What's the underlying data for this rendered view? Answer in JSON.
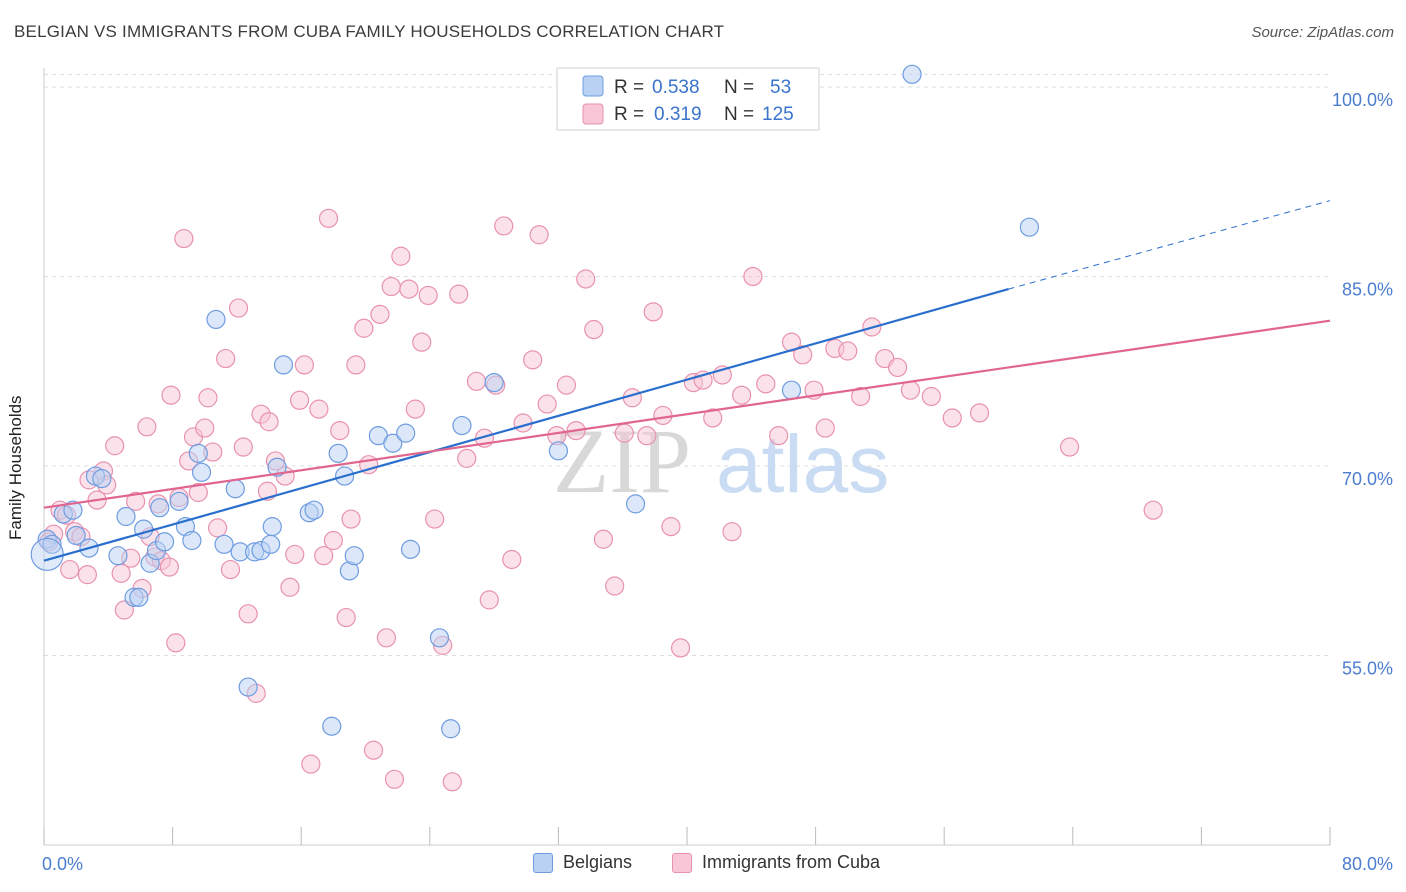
{
  "title": "BELGIAN VS IMMIGRANTS FROM CUBA FAMILY HOUSEHOLDS CORRELATION CHART",
  "source": "Source: ZipAtlas.com",
  "watermark": {
    "zip": "ZIP",
    "atlas": "atlas"
  },
  "legend_top": [
    {
      "r_label": "R =",
      "r_value": "0.538",
      "n_label": "N =",
      "n_value": "53"
    },
    {
      "r_label": "R =",
      "r_value": "0.319",
      "n_label": "N =",
      "n_value": "125"
    }
  ],
  "legend_bottom": [
    {
      "label": "Belgians"
    },
    {
      "label": "Immigrants from Cuba"
    }
  ],
  "colors": {
    "blue_fill": "#b9d1f3",
    "blue_stroke": "#6e9ce0",
    "blue_line": "#2a6fce",
    "pink_fill": "#f8c6d6",
    "pink_stroke": "#e892ae",
    "pink_line": "#e0668f",
    "tick_text": "#4c7dcf",
    "grid": "#dddddd"
  },
  "chart_data": {
    "type": "scatter",
    "title": "BELGIAN VS IMMIGRANTS FROM CUBA FAMILY HOUSEHOLDS CORRELATION CHART",
    "xlabel": "",
    "ylabel": "Family Households",
    "xlim": [
      0,
      80
    ],
    "ylim": [
      40,
      101.5
    ],
    "x_tick_labels": [
      "0.0%",
      "80.0%"
    ],
    "y_ticks": [
      55,
      70,
      85,
      100
    ],
    "y_tick_labels": [
      "55.0%",
      "70.0%",
      "85.0%",
      "100.0%"
    ],
    "grid": true,
    "legend_position": "top-center",
    "series": [
      {
        "name": "Belgians",
        "r": 0.538,
        "n": 53,
        "trend": {
          "x0": 0,
          "y0": 62.5,
          "x1": 60,
          "y1": 84.0,
          "dash_to_x": 80,
          "dash_to_y": 91.0
        },
        "points": [
          [
            0.2,
            64.2
          ],
          [
            0.5,
            63.8
          ],
          [
            1.2,
            66.2
          ],
          [
            1.8,
            66.5
          ],
          [
            2.0,
            64.5
          ],
          [
            2.8,
            63.5
          ],
          [
            3.2,
            69.2
          ],
          [
            3.6,
            69.0
          ],
          [
            4.6,
            62.9
          ],
          [
            5.1,
            66.0
          ],
          [
            5.6,
            59.6
          ],
          [
            5.9,
            59.6
          ],
          [
            6.2,
            65.0
          ],
          [
            6.6,
            62.3
          ],
          [
            7.0,
            63.3
          ],
          [
            7.2,
            66.7
          ],
          [
            7.5,
            64.0
          ],
          [
            8.4,
            67.2
          ],
          [
            8.8,
            65.2
          ],
          [
            9.2,
            64.1
          ],
          [
            9.6,
            71.0
          ],
          [
            9.8,
            69.5
          ],
          [
            10.7,
            81.6
          ],
          [
            11.2,
            63.8
          ],
          [
            11.9,
            68.2
          ],
          [
            12.2,
            63.2
          ],
          [
            12.7,
            52.5
          ],
          [
            13.1,
            63.2
          ],
          [
            13.5,
            63.3
          ],
          [
            14.1,
            63.8
          ],
          [
            14.2,
            65.2
          ],
          [
            14.9,
            78.0
          ],
          [
            16.5,
            66.3
          ],
          [
            16.8,
            66.5
          ],
          [
            17.9,
            49.4
          ],
          [
            18.3,
            71.0
          ],
          [
            18.7,
            69.2
          ],
          [
            19.0,
            61.7
          ],
          [
            20.8,
            72.4
          ],
          [
            21.7,
            71.8
          ],
          [
            22.5,
            72.6
          ],
          [
            24.6,
            56.4
          ],
          [
            25.3,
            49.2
          ],
          [
            26.0,
            73.2
          ],
          [
            28.0,
            76.6
          ],
          [
            32.0,
            71.2
          ],
          [
            36.8,
            67.0
          ],
          [
            46.5,
            76.0
          ],
          [
            61.3,
            88.9
          ],
          [
            54.0,
            101.0
          ],
          [
            14.5,
            69.9
          ],
          [
            19.3,
            62.9
          ],
          [
            22.8,
            63.4
          ]
        ]
      },
      {
        "name": "Immigrants from Cuba",
        "r": 0.319,
        "n": 125,
        "trend": {
          "x0": 0,
          "y0": 66.7,
          "x1": 80,
          "y1": 81.5
        },
        "points": [
          [
            0.3,
            64.0
          ],
          [
            0.6,
            64.6
          ],
          [
            1.0,
            66.5
          ],
          [
            1.4,
            66.1
          ],
          [
            1.6,
            61.8
          ],
          [
            1.9,
            64.8
          ],
          [
            2.3,
            64.4
          ],
          [
            2.7,
            61.4
          ],
          [
            2.8,
            68.9
          ],
          [
            3.3,
            67.3
          ],
          [
            3.7,
            69.6
          ],
          [
            3.9,
            68.5
          ],
          [
            4.4,
            71.6
          ],
          [
            4.8,
            61.5
          ],
          [
            5.0,
            58.6
          ],
          [
            5.4,
            62.7
          ],
          [
            5.7,
            67.2
          ],
          [
            6.1,
            60.3
          ],
          [
            6.4,
            73.1
          ],
          [
            6.6,
            64.4
          ],
          [
            6.9,
            62.8
          ],
          [
            7.1,
            67.0
          ],
          [
            7.3,
            62.5
          ],
          [
            7.8,
            62.0
          ],
          [
            7.9,
            75.6
          ],
          [
            8.2,
            56.0
          ],
          [
            8.4,
            67.5
          ],
          [
            8.7,
            88.0
          ],
          [
            9.0,
            70.4
          ],
          [
            9.3,
            72.3
          ],
          [
            9.6,
            67.9
          ],
          [
            10.0,
            73.0
          ],
          [
            10.2,
            75.4
          ],
          [
            10.5,
            71.1
          ],
          [
            10.8,
            65.1
          ],
          [
            11.3,
            78.5
          ],
          [
            11.6,
            61.8
          ],
          [
            12.1,
            82.5
          ],
          [
            12.4,
            71.5
          ],
          [
            12.7,
            58.3
          ],
          [
            13.2,
            52.0
          ],
          [
            13.5,
            74.1
          ],
          [
            13.9,
            68.0
          ],
          [
            14.0,
            73.5
          ],
          [
            14.4,
            70.4
          ],
          [
            15.0,
            69.2
          ],
          [
            15.3,
            60.4
          ],
          [
            15.6,
            63.0
          ],
          [
            15.9,
            75.2
          ],
          [
            16.2,
            78.0
          ],
          [
            16.6,
            46.4
          ],
          [
            17.1,
            74.5
          ],
          [
            17.4,
            62.9
          ],
          [
            17.7,
            89.6
          ],
          [
            18.0,
            64.1
          ],
          [
            18.4,
            72.8
          ],
          [
            18.8,
            58.0
          ],
          [
            19.1,
            65.8
          ],
          [
            19.4,
            78.0
          ],
          [
            19.9,
            80.9
          ],
          [
            20.2,
            70.1
          ],
          [
            20.5,
            47.5
          ],
          [
            20.9,
            82.0
          ],
          [
            21.3,
            56.4
          ],
          [
            21.6,
            84.2
          ],
          [
            21.8,
            45.2
          ],
          [
            22.2,
            86.6
          ],
          [
            22.7,
            84.0
          ],
          [
            23.1,
            74.5
          ],
          [
            23.5,
            79.8
          ],
          [
            23.9,
            83.5
          ],
          [
            24.3,
            65.8
          ],
          [
            24.8,
            55.8
          ],
          [
            25.4,
            45.0
          ],
          [
            25.8,
            83.6
          ],
          [
            26.3,
            70.6
          ],
          [
            26.9,
            76.7
          ],
          [
            27.4,
            72.2
          ],
          [
            27.7,
            59.4
          ],
          [
            28.1,
            76.4
          ],
          [
            28.6,
            89.0
          ],
          [
            29.1,
            62.6
          ],
          [
            29.8,
            73.4
          ],
          [
            30.4,
            78.4
          ],
          [
            30.8,
            88.3
          ],
          [
            31.3,
            74.9
          ],
          [
            31.9,
            72.4
          ],
          [
            32.5,
            76.4
          ],
          [
            33.1,
            72.8
          ],
          [
            33.7,
            84.8
          ],
          [
            34.2,
            80.8
          ],
          [
            34.8,
            64.2
          ],
          [
            35.5,
            60.5
          ],
          [
            36.1,
            72.6
          ],
          [
            36.6,
            75.4
          ],
          [
            37.5,
            72.4
          ],
          [
            37.9,
            82.2
          ],
          [
            38.5,
            74.0
          ],
          [
            39.0,
            65.2
          ],
          [
            39.6,
            55.6
          ],
          [
            40.4,
            76.6
          ],
          [
            41.0,
            76.8
          ],
          [
            41.6,
            73.8
          ],
          [
            42.2,
            77.2
          ],
          [
            42.8,
            64.8
          ],
          [
            43.4,
            75.6
          ],
          [
            44.1,
            85.0
          ],
          [
            44.9,
            76.5
          ],
          [
            45.7,
            72.4
          ],
          [
            46.5,
            79.8
          ],
          [
            47.2,
            78.8
          ],
          [
            47.9,
            76.0
          ],
          [
            48.6,
            73.0
          ],
          [
            49.2,
            79.3
          ],
          [
            50.0,
            79.1
          ],
          [
            50.8,
            75.5
          ],
          [
            51.5,
            81.0
          ],
          [
            52.3,
            78.5
          ],
          [
            53.1,
            77.8
          ],
          [
            53.9,
            76.0
          ],
          [
            55.2,
            75.5
          ],
          [
            56.5,
            73.8
          ],
          [
            58.2,
            74.2
          ],
          [
            63.8,
            71.5
          ],
          [
            69.0,
            66.5
          ]
        ]
      }
    ]
  }
}
